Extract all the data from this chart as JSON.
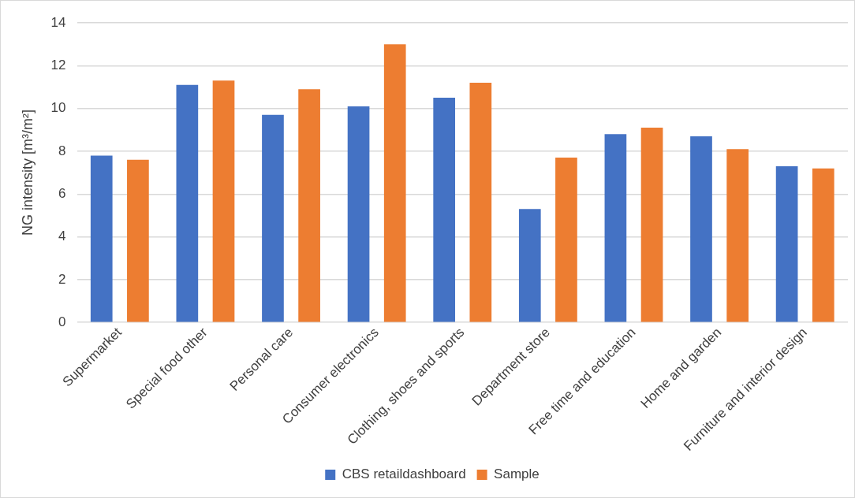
{
  "chart_data": {
    "type": "bar",
    "ylabel": "NG intensity [m³/m²]",
    "categories": [
      "Supermarket",
      "Special food other",
      "Personal care",
      "Consumer electronics",
      "Clothing, shoes and sports",
      "Department store",
      "Free time and education",
      "Home and garden",
      "Furniture and interior design"
    ],
    "series": [
      {
        "name": "CBS retaildashboard",
        "color": "#4472c4",
        "values": [
          7.8,
          11.1,
          9.7,
          10.1,
          10.5,
          5.3,
          8.8,
          8.7,
          7.3
        ]
      },
      {
        "name": "Sample",
        "color": "#ed7d31",
        "values": [
          7.6,
          11.3,
          10.9,
          13.0,
          11.2,
          7.7,
          9.1,
          8.1,
          7.2
        ]
      }
    ],
    "ylim": [
      0,
      14
    ],
    "yticks": [
      0,
      2,
      4,
      6,
      8,
      10,
      12,
      14
    ],
    "grid": "y",
    "legend": "bottom"
  }
}
